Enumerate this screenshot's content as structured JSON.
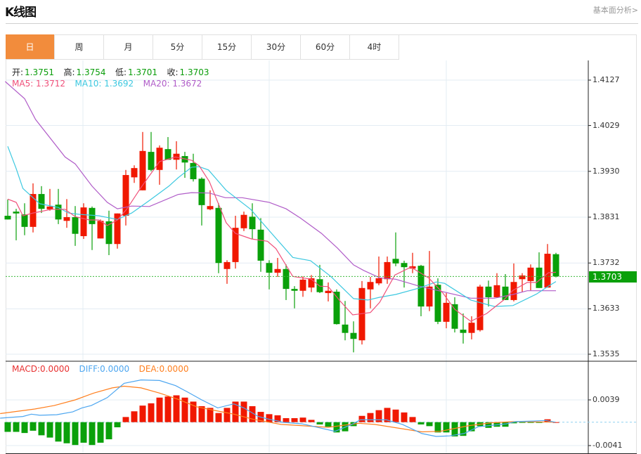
{
  "header": {
    "title": "K线图",
    "link": "基本面分析>"
  },
  "tabs": [
    {
      "label": "日",
      "active": true
    },
    {
      "label": "周"
    },
    {
      "label": "月"
    },
    {
      "label": "5分"
    },
    {
      "label": "15分"
    },
    {
      "label": "30分"
    },
    {
      "label": "60分"
    },
    {
      "label": "4时"
    }
  ],
  "ohlc_legend": {
    "open_label": "开:",
    "open": "1.3751",
    "high_label": "高:",
    "high": "1.3754",
    "low_label": "低:",
    "low": "1.3701",
    "close_label": "收:",
    "close": "1.3703"
  },
  "ma_legend": {
    "ma5": "MA5: 1.3712",
    "ma10": "MA10: 1.3692",
    "ma20": "MA20: 1.3672"
  },
  "macd_legend": {
    "macd": "MACD:0.0000",
    "diff": "DIFF:0.0000",
    "dea": "DEA:0.0000"
  },
  "colors": {
    "up": "#f01800",
    "down": "#0aa00a",
    "ma5": "#f0507a",
    "ma10": "#3cc8e0",
    "ma20": "#b05cc8",
    "diff": "#4da6f0",
    "dea": "#ff7f1e",
    "accent": "#f28c3c"
  },
  "chart_data": {
    "type": "candlestick",
    "price_axis": {
      "range": [
        1.3535,
        1.4127
      ],
      "ticks": [
        "1.4127",
        "1.4029",
        "1.3930",
        "1.3831",
        "1.3732",
        "1.3633",
        "1.3535"
      ]
    },
    "current_price": "1.3703",
    "candles": [
      [
        1.3834,
        1.3869,
        1.3826,
        1.3826
      ],
      [
        1.3843,
        1.3849,
        1.3781,
        1.3839
      ],
      [
        1.3837,
        1.3861,
        1.3792,
        1.381
      ],
      [
        1.381,
        1.3904,
        1.3798,
        1.3881
      ],
      [
        1.3881,
        1.3898,
        1.384,
        1.3849
      ],
      [
        1.3848,
        1.3892,
        1.3845,
        1.3854
      ],
      [
        1.3858,
        1.3892,
        1.3816,
        1.3826
      ],
      [
        1.3823,
        1.387,
        1.3808,
        1.3831
      ],
      [
        1.3831,
        1.3855,
        1.3769,
        1.3795
      ],
      [
        1.379,
        1.3861,
        1.3784,
        1.3852
      ],
      [
        1.3851,
        1.3854,
        1.376,
        1.3816
      ],
      [
        1.3785,
        1.3826,
        1.3785,
        1.3823
      ],
      [
        1.3822,
        1.3845,
        1.3749,
        1.3773
      ],
      [
        1.3773,
        1.3839,
        1.3763,
        1.3839
      ],
      [
        1.3834,
        1.3933,
        1.3813,
        1.3922
      ],
      [
        1.3917,
        1.3943,
        1.3905,
        1.3937
      ],
      [
        1.3889,
        1.4015,
        1.3889,
        1.3974
      ],
      [
        1.3972,
        1.4015,
        1.393,
        1.3933
      ],
      [
        1.3933,
        1.3986,
        1.3901,
        1.3981
      ],
      [
        1.3978,
        1.4004,
        1.3955,
        1.3955
      ],
      [
        1.3955,
        1.3995,
        1.3934,
        1.3968
      ],
      [
        1.3963,
        1.3972,
        1.3916,
        1.3949
      ],
      [
        1.3948,
        1.3968,
        1.3908,
        1.3913
      ],
      [
        1.3914,
        1.3917,
        1.3813,
        1.3857
      ],
      [
        1.3848,
        1.3889,
        1.3846,
        1.3855
      ],
      [
        1.3851,
        1.3861,
        1.371,
        1.3732
      ],
      [
        1.3719,
        1.3738,
        1.3687,
        1.3734
      ],
      [
        1.3734,
        1.3834,
        1.372,
        1.3808
      ],
      [
        1.3807,
        1.3843,
        1.3801,
        1.3836
      ],
      [
        1.3832,
        1.3861,
        1.3784,
        1.3805
      ],
      [
        1.3804,
        1.3829,
        1.3713,
        1.3737
      ],
      [
        1.3732,
        1.3738,
        1.3675,
        1.3711
      ],
      [
        1.3711,
        1.3743,
        1.3702,
        1.3719
      ],
      [
        1.3719,
        1.3729,
        1.3652,
        1.3676
      ],
      [
        1.3676,
        1.3682,
        1.3634,
        1.3672
      ],
      [
        1.3672,
        1.3703,
        1.3659,
        1.3696
      ],
      [
        1.3679,
        1.3706,
        1.3669,
        1.3699
      ],
      [
        1.3697,
        1.3728,
        1.3667,
        1.3669
      ],
      [
        1.3667,
        1.369,
        1.3649,
        1.3672
      ],
      [
        1.367,
        1.3675,
        1.3599,
        1.36
      ],
      [
        1.3599,
        1.365,
        1.3565,
        1.3581
      ],
      [
        1.3581,
        1.3606,
        1.3539,
        1.3568
      ],
      [
        1.3565,
        1.3693,
        1.3556,
        1.3678
      ],
      [
        1.3675,
        1.3702,
        1.3634,
        1.3691
      ],
      [
        1.3688,
        1.3746,
        1.3684,
        1.3699
      ],
      [
        1.3697,
        1.3746,
        1.3687,
        1.3734
      ],
      [
        1.3741,
        1.3798,
        1.3725,
        1.3731
      ],
      [
        1.3732,
        1.3737,
        1.3679,
        1.3723
      ],
      [
        1.372,
        1.3754,
        1.371,
        1.3725
      ],
      [
        1.3726,
        1.3728,
        1.3617,
        1.3638
      ],
      [
        1.3638,
        1.3758,
        1.3628,
        1.3681
      ],
      [
        1.3685,
        1.3699,
        1.36,
        1.3605
      ],
      [
        1.3605,
        1.3667,
        1.3591,
        1.3646
      ],
      [
        1.3643,
        1.3658,
        1.3582,
        1.359
      ],
      [
        1.3588,
        1.3623,
        1.3558,
        1.3581
      ],
      [
        1.3581,
        1.3617,
        1.3567,
        1.3603
      ],
      [
        1.3587,
        1.3685,
        1.3584,
        1.3681
      ],
      [
        1.3681,
        1.3694,
        1.3638,
        1.3658
      ],
      [
        1.3658,
        1.371,
        1.3658,
        1.3684
      ],
      [
        1.3681,
        1.3708,
        1.3652,
        1.3652
      ],
      [
        1.3652,
        1.3731,
        1.3649,
        1.3691
      ],
      [
        1.3697,
        1.371,
        1.367,
        1.3705
      ],
      [
        1.3693,
        1.3729,
        1.3673,
        1.3722
      ],
      [
        1.3722,
        1.3755,
        1.3678,
        1.3678
      ],
      [
        1.3679,
        1.3773,
        1.3679,
        1.3752
      ],
      [
        1.3751,
        1.3754,
        1.3701,
        1.3703
      ]
    ],
    "ma5": [
      [
        0,
        1.387
      ],
      [
        1,
        1.3863
      ],
      [
        1.8,
        1.3834
      ],
      [
        3,
        1.384
      ],
      [
        5.2,
        1.3848
      ],
      [
        6.8,
        1.3848
      ],
      [
        8,
        1.3832
      ],
      [
        9.7,
        1.3825
      ],
      [
        10.8,
        1.3825
      ],
      [
        11.8,
        1.3813
      ],
      [
        13,
        1.3825
      ],
      [
        14.1,
        1.3848
      ],
      [
        15.8,
        1.3895
      ],
      [
        18,
        1.3951
      ],
      [
        19.9,
        1.3961
      ],
      [
        21.8,
        1.3954
      ],
      [
        22.7,
        1.3942
      ],
      [
        23.9,
        1.3908
      ],
      [
        25.9,
        1.3819
      ],
      [
        27,
        1.3796
      ],
      [
        28.9,
        1.3784
      ],
      [
        30.8,
        1.3779
      ],
      [
        31.8,
        1.3763
      ],
      [
        33.8,
        1.3703
      ],
      [
        36,
        1.3697
      ],
      [
        37,
        1.3682
      ],
      [
        38,
        1.3681
      ],
      [
        39.3,
        1.3652
      ],
      [
        40.9,
        1.362
      ],
      [
        43,
        1.3625
      ],
      [
        44.1,
        1.3647
      ],
      [
        45.9,
        1.3706
      ],
      [
        47.8,
        1.3723
      ],
      [
        49.9,
        1.37
      ],
      [
        51.6,
        1.3667
      ],
      [
        53,
        1.3632
      ],
      [
        54.9,
        1.3606
      ],
      [
        56.8,
        1.3623
      ],
      [
        58.8,
        1.3652
      ],
      [
        59.9,
        1.3673
      ],
      [
        61.6,
        1.369
      ],
      [
        62.7,
        1.369
      ],
      [
        64.1,
        1.3711
      ],
      [
        65,
        1.3712
      ]
    ],
    "ma10": [
      [
        0,
        1.3984
      ],
      [
        1,
        1.3936
      ],
      [
        1.8,
        1.3893
      ],
      [
        3.8,
        1.386
      ],
      [
        6,
        1.3852
      ],
      [
        7.2,
        1.384
      ],
      [
        8.5,
        1.3837
      ],
      [
        10.8,
        1.3834
      ],
      [
        13,
        1.3826
      ],
      [
        14.7,
        1.384
      ],
      [
        16.8,
        1.3867
      ],
      [
        19.1,
        1.3898
      ],
      [
        20.2,
        1.3916
      ],
      [
        21.8,
        1.3939
      ],
      [
        22.7,
        1.394
      ],
      [
        23.8,
        1.3933
      ],
      [
        25.9,
        1.3889
      ],
      [
        28.8,
        1.3848
      ],
      [
        31,
        1.3802
      ],
      [
        33.8,
        1.3744
      ],
      [
        35.9,
        1.3737
      ],
      [
        38.3,
        1.3703
      ],
      [
        41,
        1.3655
      ],
      [
        42.7,
        1.3652
      ],
      [
        44.1,
        1.3658
      ],
      [
        46,
        1.3664
      ],
      [
        48.8,
        1.3678
      ],
      [
        50.8,
        1.3691
      ],
      [
        51.8,
        1.3688
      ],
      [
        54.9,
        1.3652
      ],
      [
        57.7,
        1.3638
      ],
      [
        59.9,
        1.364
      ],
      [
        62.7,
        1.3665
      ],
      [
        64.1,
        1.3682
      ],
      [
        65,
        1.3692
      ]
    ],
    "ma20": [
      [
        -0.3,
        1.4124
      ],
      [
        2,
        1.4087
      ],
      [
        3.3,
        1.4042
      ],
      [
        6.8,
        1.3961
      ],
      [
        8,
        1.3946
      ],
      [
        10,
        1.3898
      ],
      [
        11.8,
        1.3863
      ],
      [
        13,
        1.3849
      ],
      [
        14.7,
        1.3855
      ],
      [
        16.8,
        1.3854
      ],
      [
        20.2,
        1.388
      ],
      [
        21.8,
        1.3884
      ],
      [
        23.9,
        1.3883
      ],
      [
        25.8,
        1.3873
      ],
      [
        27.8,
        1.3873
      ],
      [
        31,
        1.3863
      ],
      [
        33,
        1.3849
      ],
      [
        34.7,
        1.3829
      ],
      [
        37.2,
        1.3796
      ],
      [
        39.1,
        1.3764
      ],
      [
        41,
        1.3728
      ],
      [
        42.2,
        1.3716
      ],
      [
        44.1,
        1.37
      ],
      [
        46,
        1.3697
      ],
      [
        48.8,
        1.3682
      ],
      [
        51.6,
        1.367
      ],
      [
        54.9,
        1.3656
      ],
      [
        57.7,
        1.3656
      ],
      [
        59.9,
        1.3664
      ],
      [
        61.6,
        1.3672
      ],
      [
        65,
        1.3672
      ]
    ],
    "macd_axis": {
      "ticks": [
        "0.0039",
        "-0.0041"
      ],
      "range": [
        -0.0041,
        0.0039
      ]
    },
    "macd": [
      -0.0017,
      -0.0017,
      -0.0019,
      -0.0015,
      -0.0023,
      -0.0027,
      -0.0034,
      -0.0037,
      -0.004,
      -0.0036,
      -0.004,
      -0.0036,
      -0.003,
      -0.0009,
      0.0009,
      0.0019,
      0.0029,
      0.0033,
      0.0043,
      0.0045,
      0.0047,
      0.0043,
      0.0036,
      0.0028,
      0.0025,
      0.0016,
      0.0025,
      0.0036,
      0.0036,
      0.0028,
      0.0018,
      0.0014,
      0.0012,
      0.0007,
      0.0007,
      0.0008,
      0.0004,
      -0.0004,
      -0.0008,
      -0.0018,
      -0.0016,
      -0.0007,
      0.0011,
      0.0016,
      0.0021,
      0.0025,
      0.0022,
      0.0017,
      0.0009,
      -0.0004,
      -0.0007,
      -0.0018,
      -0.0018,
      -0.0025,
      -0.0024,
      -0.0016,
      -0.0007,
      -0.001,
      -0.0008,
      -0.0008,
      -0.0002,
      -0.0001,
      -0.0001,
      -0.0001,
      0.0005,
      0.0
    ],
    "diff": [
      [
        -0.9,
        0.0007
      ],
      [
        1.8,
        0.001
      ],
      [
        2.8,
        0.0014
      ],
      [
        3.8,
        0.0012
      ],
      [
        5.8,
        0.0013
      ],
      [
        7.7,
        0.0018
      ],
      [
        8.8,
        0.0025
      ],
      [
        9.9,
        0.0029
      ],
      [
        11.8,
        0.0043
      ],
      [
        13.8,
        0.0068
      ],
      [
        15.8,
        0.0074
      ],
      [
        18,
        0.0073
      ],
      [
        19.9,
        0.0064
      ],
      [
        21.3,
        0.0053
      ],
      [
        23,
        0.0039
      ],
      [
        24.9,
        0.0025
      ],
      [
        26.8,
        0.0032
      ],
      [
        28,
        0.0025
      ],
      [
        29.7,
        0.001
      ],
      [
        31,
        0.0005
      ],
      [
        32.4,
        0.0001
      ],
      [
        32.4,
        0.0
      ],
      [
        34.9,
        -0.0003
      ],
      [
        38.8,
        -0.0016
      ],
      [
        40.8,
        -0.0004
      ],
      [
        41.8,
        0.0004
      ],
      [
        44.9,
        0.0004
      ],
      [
        46.8,
        -0.0004
      ],
      [
        49.1,
        -0.002
      ],
      [
        50.8,
        -0.0025
      ],
      [
        52.4,
        -0.0024
      ],
      [
        54.1,
        -0.002
      ],
      [
        55.8,
        -0.0008
      ],
      [
        59.1,
        -0.0003
      ],
      [
        60.2,
        0.0001
      ],
      [
        62.4,
        0.0002
      ],
      [
        63.8,
        0.0003
      ],
      [
        64.9,
        0.0
      ]
    ],
    "dea": [
      [
        -0.9,
        0.0015
      ],
      [
        3.2,
        0.0023
      ],
      [
        5.5,
        0.0029
      ],
      [
        8,
        0.0039
      ],
      [
        10.2,
        0.0051
      ],
      [
        12.4,
        0.006
      ],
      [
        13.8,
        0.0063
      ],
      [
        15.8,
        0.006
      ],
      [
        18,
        0.0051
      ],
      [
        20.2,
        0.004
      ],
      [
        22.4,
        0.0027
      ],
      [
        24.7,
        0.002
      ],
      [
        26.8,
        0.0014
      ],
      [
        29.1,
        0.0005
      ],
      [
        32.4,
        -0.0004
      ],
      [
        38,
        -0.0009
      ],
      [
        41.6,
        -0.0002
      ],
      [
        43.5,
        -0.0004
      ],
      [
        49.1,
        -0.0017
      ],
      [
        51.3,
        -0.0016
      ],
      [
        54.7,
        -0.0006
      ],
      [
        57.4,
        -0.0001
      ],
      [
        60.2,
        0.0001
      ],
      [
        64.9,
        0.0
      ]
    ]
  }
}
